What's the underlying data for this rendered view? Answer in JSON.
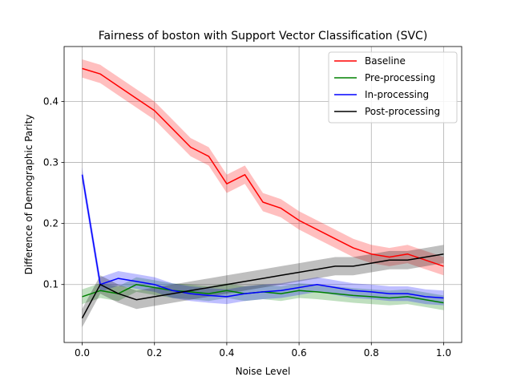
{
  "chart_data": {
    "type": "line",
    "title": "Fairness of boston with Support Vector Classification (SVC)",
    "xlabel": "Noise Level",
    "ylabel": "Difference of Demographic Parity",
    "xlim": [
      -0.05,
      1.05
    ],
    "ylim": [
      0.005,
      0.49
    ],
    "xticks": [
      0.0,
      0.2,
      0.4,
      0.6,
      0.8,
      1.0
    ],
    "xtick_labels": [
      "0.0",
      "0.2",
      "0.4",
      "0.6",
      "0.8",
      "1.0"
    ],
    "yticks": [
      0.1,
      0.2,
      0.3,
      0.4
    ],
    "ytick_labels": [
      "0.1",
      "0.2",
      "0.3",
      "0.4"
    ],
    "grid": true,
    "legend_position": "top-right",
    "x": [
      0.0,
      0.05,
      0.1,
      0.15,
      0.2,
      0.25,
      0.3,
      0.35,
      0.4,
      0.45,
      0.5,
      0.55,
      0.6,
      0.65,
      0.7,
      0.75,
      0.8,
      0.85,
      0.9,
      0.95,
      1.0
    ],
    "series": [
      {
        "name": "Baseline",
        "color": "#ff0000",
        "values": [
          0.454,
          0.445,
          0.425,
          0.405,
          0.385,
          0.355,
          0.325,
          0.31,
          0.265,
          0.28,
          0.235,
          0.225,
          0.205,
          0.19,
          0.175,
          0.16,
          0.15,
          0.145,
          0.15,
          0.14,
          0.13
        ],
        "band": 0.015
      },
      {
        "name": "Pre-processing",
        "color": "#008000",
        "values": [
          0.08,
          0.09,
          0.085,
          0.1,
          0.095,
          0.09,
          0.088,
          0.085,
          0.09,
          0.085,
          0.088,
          0.085,
          0.09,
          0.088,
          0.085,
          0.082,
          0.08,
          0.078,
          0.08,
          0.075,
          0.07
        ],
        "band": 0.012
      },
      {
        "name": "In-processing",
        "color": "#0000ff",
        "values": [
          0.28,
          0.1,
          0.11,
          0.105,
          0.1,
          0.09,
          0.085,
          0.082,
          0.08,
          0.085,
          0.088,
          0.09,
          0.095,
          0.1,
          0.095,
          0.09,
          0.088,
          0.085,
          0.085,
          0.08,
          0.078
        ],
        "band": 0.012
      },
      {
        "name": "Post-processing",
        "color": "#000000",
        "values": [
          0.045,
          0.1,
          0.085,
          0.075,
          0.08,
          0.085,
          0.09,
          0.095,
          0.1,
          0.105,
          0.11,
          0.115,
          0.12,
          0.125,
          0.13,
          0.13,
          0.135,
          0.14,
          0.14,
          0.145,
          0.15
        ],
        "band": 0.015
      }
    ]
  }
}
